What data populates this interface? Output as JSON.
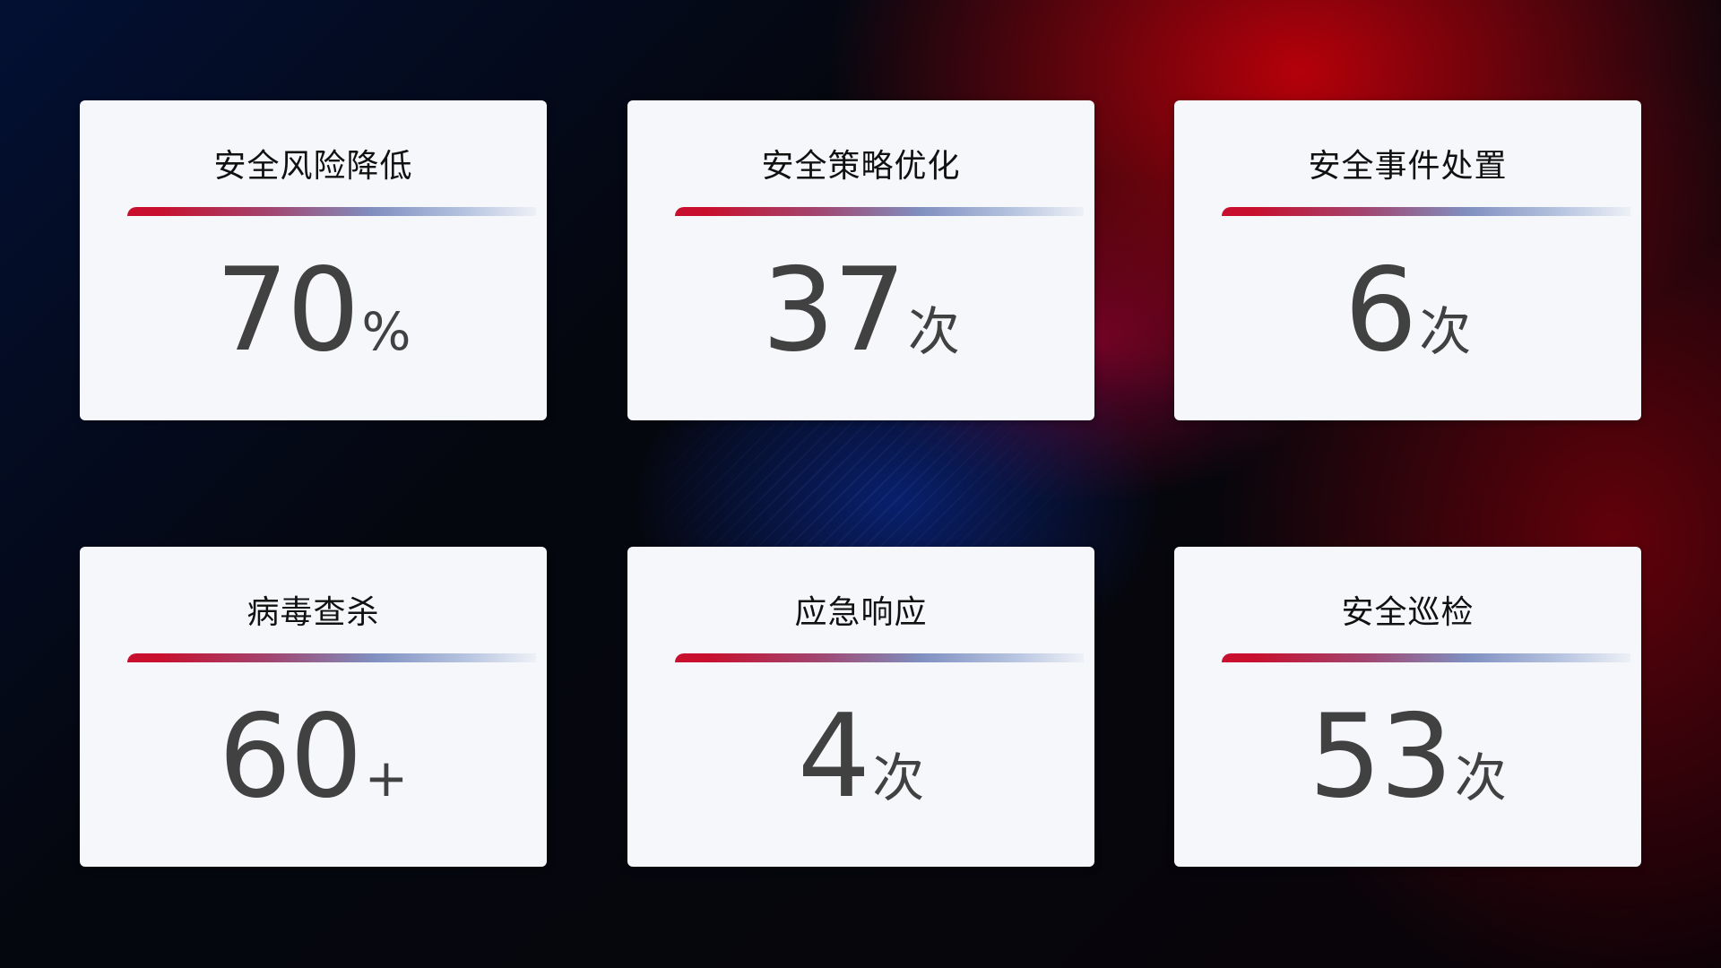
{
  "cards": [
    {
      "title": "安全风险降低",
      "value": "70",
      "unit": "%"
    },
    {
      "title": "安全策略优化",
      "value": "37",
      "unit": "次"
    },
    {
      "title": "安全事件处置",
      "value": "6",
      "unit": "次"
    },
    {
      "title": "病毒查杀",
      "value": "60",
      "unit": "+"
    },
    {
      "title": "应急响应",
      "value": "4",
      "unit": "次"
    },
    {
      "title": "安全巡检",
      "value": "53",
      "unit": "次"
    }
  ],
  "colors": {
    "accent_red": "#c8102e",
    "accent_blue": "#7f8fc0",
    "card_bg": "#f5f7fb",
    "value_text": "#414141"
  }
}
